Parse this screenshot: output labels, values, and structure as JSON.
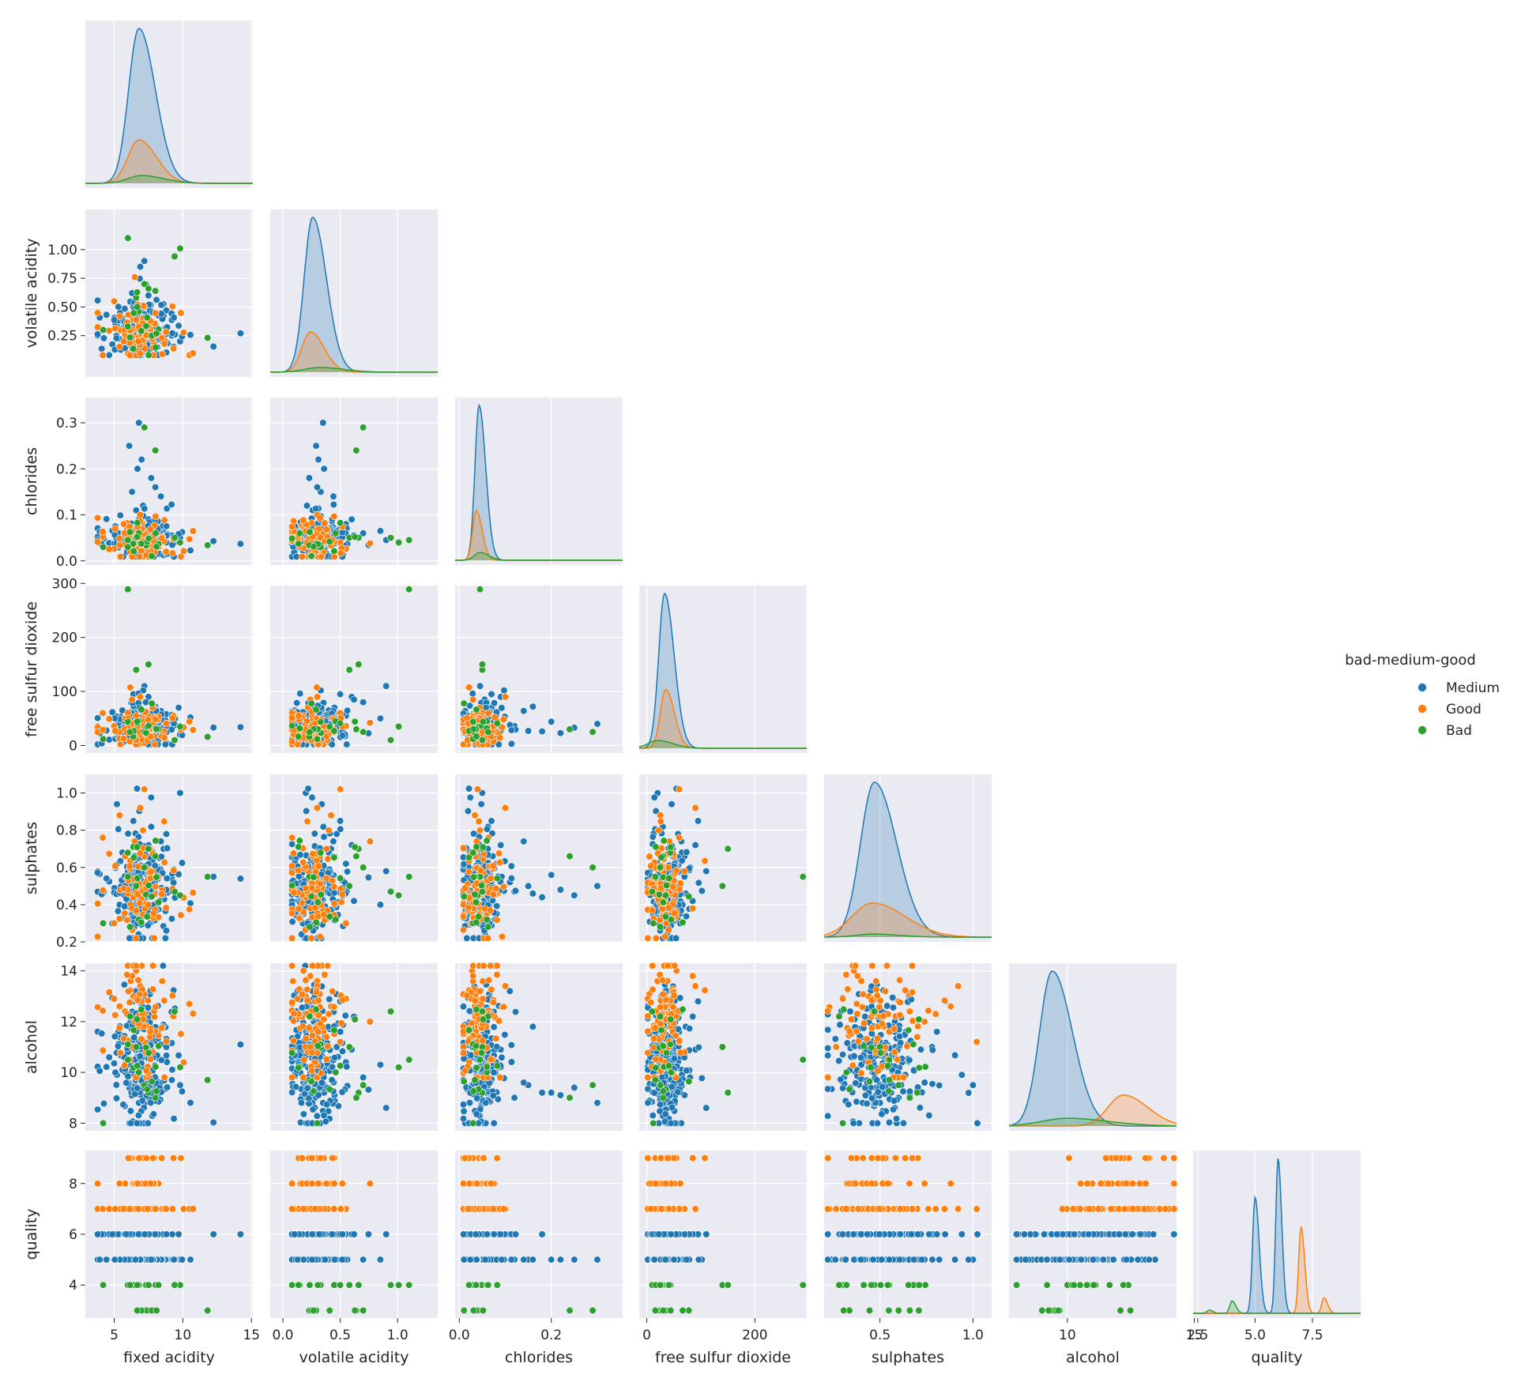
{
  "chart_data": {
    "type": "scatter",
    "subtype": "pairplot-corner",
    "hue_title": "bad-medium-good",
    "variables": [
      "fixed acidity",
      "volatile acidity",
      "chlorides",
      "free sulfur dioxide",
      "sulphates",
      "alcohol",
      "quality"
    ],
    "legend": {
      "title": "bad-medium-good",
      "placement": "right",
      "entries": [
        {
          "name": "Medium",
          "color": "#1f77b4"
        },
        {
          "name": "Good",
          "color": "#ff7f0e"
        },
        {
          "name": "Bad",
          "color": "#2ca02c"
        }
      ]
    },
    "axes": {
      "fixed acidity": {
        "range": [
          2.9,
          15.1
        ],
        "ticks": [
          5,
          10,
          15
        ],
        "tick_labels": [
          "5",
          "10",
          "15"
        ],
        "center": 7.0,
        "spread": 0.9,
        "min": 3.8,
        "max": 14.2
      },
      "volatile acidity": {
        "range": [
          -0.11,
          1.35
        ],
        "ticks": [
          0.25,
          0.5,
          0.75,
          1.0
        ],
        "tick_labels": [
          "0.25",
          "0.50",
          "0.75",
          "1.00"
        ],
        "x_ticks": [
          0.0,
          0.5,
          1.0
        ],
        "x_tick_labels": [
          "0.0",
          "0.5",
          "1.0"
        ],
        "center": 0.28,
        "spread": 0.1,
        "min": 0.08,
        "max": 1.1
      },
      "chlorides": {
        "range": [
          -0.009,
          0.355
        ],
        "ticks": [
          0.0,
          0.1,
          0.2,
          0.3
        ],
        "tick_labels": [
          "0.0",
          "0.1",
          "0.2",
          "0.3"
        ],
        "x_ticks": [
          0.0,
          0.2
        ],
        "x_tick_labels": [
          "0.0",
          "0.2"
        ],
        "center": 0.045,
        "spread": 0.018,
        "min": 0.009,
        "max": 0.346
      },
      "free sulfur dioxide": {
        "range": [
          -14,
          296
        ],
        "ticks": [
          0,
          100,
          200,
          300
        ],
        "tick_labels": [
          "0",
          "100",
          "200",
          "300"
        ],
        "x_ticks": [
          0,
          200
        ],
        "x_tick_labels": [
          "0",
          "200"
        ],
        "center": 35,
        "spread": 16,
        "min": 2,
        "max": 289
      },
      "sulphates": {
        "range": [
          0.2,
          1.1
        ],
        "ticks": [
          0.2,
          0.4,
          0.6,
          0.8,
          1.0
        ],
        "tick_labels": [
          "0.2",
          "0.4",
          "0.6",
          "0.8",
          "1.0"
        ],
        "x_ticks": [
          0.5,
          1.0
        ],
        "x_tick_labels": [
          "0.5",
          "1.0"
        ],
        "center": 0.49,
        "spread": 0.11,
        "min": 0.22,
        "max": 1.08
      },
      "alcohol": {
        "range": [
          7.7,
          14.3
        ],
        "ticks": [
          8,
          10,
          12,
          14
        ],
        "tick_labels": [
          "8",
          "10",
          "12",
          "14"
        ],
        "x_ticks": [
          10,
          15
        ],
        "x_tick_labels": [
          "10",
          "15"
        ],
        "center": 10.4,
        "spread": 1.2,
        "min": 8.0,
        "max": 14.2
      },
      "quality": {
        "range": [
          2.7,
          9.3
        ],
        "ticks": [
          4,
          6,
          8
        ],
        "tick_labels": [
          "4",
          "6",
          "8"
        ],
        "x_ticks": [
          2.5,
          5.0,
          7.5
        ],
        "x_tick_labels": [
          "2.5",
          "5.0",
          "7.5"
        ],
        "x_range": [
          2.3,
          9.6
        ],
        "center": 6,
        "spread": 1,
        "min": 3,
        "max": 9
      }
    },
    "diagonal_kde": {
      "fixed acidity": [
        {
          "name": "Medium",
          "peak_x": 6.8,
          "height": 1.0,
          "width": 0.75
        },
        {
          "name": "Good",
          "peak_x": 6.8,
          "height": 0.28,
          "width": 0.8
        },
        {
          "name": "Bad",
          "peak_x": 7.0,
          "height": 0.05,
          "width": 1.0
        }
      ],
      "volatile acidity": [
        {
          "name": "Medium",
          "peak_x": 0.26,
          "height": 1.0,
          "width": 0.075
        },
        {
          "name": "Good",
          "peak_x": 0.24,
          "height": 0.26,
          "width": 0.075
        },
        {
          "name": "Bad",
          "peak_x": 0.32,
          "height": 0.03,
          "width": 0.13
        }
      ],
      "chlorides": [
        {
          "name": "Medium",
          "peak_x": 0.043,
          "height": 1.0,
          "width": 0.009
        },
        {
          "name": "Good",
          "peak_x": 0.037,
          "height": 0.32,
          "width": 0.008
        },
        {
          "name": "Bad",
          "peak_x": 0.045,
          "height": 0.05,
          "width": 0.012
        }
      ],
      "free sulfur dioxide": [
        {
          "name": "Medium",
          "peak_x": 33,
          "height": 1.0,
          "width": 11
        },
        {
          "name": "Good",
          "peak_x": 35,
          "height": 0.38,
          "width": 10
        },
        {
          "name": "Bad",
          "peak_x": 20,
          "height": 0.05,
          "width": 18
        }
      ],
      "sulphates": [
        {
          "name": "Medium",
          "peak_x": 0.47,
          "height": 1.0,
          "width": 0.075
        },
        {
          "name": "Good",
          "peak_x": 0.46,
          "height": 0.22,
          "width": 0.11
        },
        {
          "name": "Bad",
          "peak_x": 0.46,
          "height": 0.02,
          "width": 0.09
        }
      ],
      "alcohol": [
        {
          "name": "Medium",
          "peak_x": 9.4,
          "height": 1.0,
          "width": 0.5
        },
        {
          "name": "Good",
          "peak_x": 12.2,
          "height": 0.2,
          "width": 0.6
        },
        {
          "name": "Bad",
          "peak_x": 10.0,
          "height": 0.05,
          "width": 1.0
        }
      ],
      "quality": [
        {
          "name": "Medium",
          "peak_x": 5.0,
          "height": 0.75,
          "width": 0.11
        },
        {
          "name": "Medium",
          "peak_x": 6.0,
          "height": 1.0,
          "width": 0.1
        },
        {
          "name": "Good",
          "peak_x": 7.0,
          "height": 0.56,
          "width": 0.1
        },
        {
          "name": "Good",
          "peak_x": 8.0,
          "height": 0.1,
          "width": 0.1
        },
        {
          "name": "Bad",
          "peak_x": 4.0,
          "height": 0.08,
          "width": 0.1
        },
        {
          "name": "Bad",
          "peak_x": 3.0,
          "height": 0.02,
          "width": 0.1
        }
      ]
    },
    "series": [
      {
        "name": "Medium",
        "color": "#1f77b4",
        "points": [
          [
            6.8,
            0.26,
            0.044,
            35,
            0.48,
            9.4,
            6
          ],
          [
            7.2,
            0.3,
            0.05,
            40,
            0.52,
            9.8,
            5
          ],
          [
            6.4,
            0.22,
            0.036,
            28,
            0.44,
            10.2,
            6
          ],
          [
            7.6,
            0.34,
            0.058,
            45,
            0.55,
            9.2,
            5
          ],
          [
            6.0,
            0.2,
            0.04,
            22,
            0.42,
            10.8,
            6
          ],
          [
            8.2,
            0.28,
            0.046,
            30,
            0.6,
            9.0,
            5
          ],
          [
            6.6,
            0.38,
            0.052,
            52,
            0.5,
            11.2,
            6
          ],
          [
            7.0,
            0.18,
            0.032,
            18,
            0.38,
            9.6,
            5
          ],
          [
            5.8,
            0.24,
            0.042,
            38,
            0.46,
            10.0,
            6
          ],
          [
            7.8,
            0.32,
            0.048,
            60,
            0.64,
            11.6,
            6
          ],
          [
            6.2,
            0.27,
            0.038,
            25,
            0.58,
            12.0,
            6
          ],
          [
            8.6,
            0.42,
            0.062,
            48,
            0.7,
            9.3,
            5
          ],
          [
            7.4,
            0.15,
            0.03,
            15,
            0.36,
            10.6,
            5
          ],
          [
            6.9,
            0.45,
            0.07,
            70,
            0.66,
            9.1,
            5
          ],
          [
            5.4,
            0.3,
            0.034,
            32,
            0.4,
            11.4,
            6
          ],
          [
            9.2,
            0.25,
            0.055,
            42,
            0.54,
            9.7,
            5
          ],
          [
            6.5,
            0.55,
            0.08,
            55,
            0.62,
            10.4,
            6
          ],
          [
            7.1,
            0.21,
            0.12,
            36,
            0.47,
            9.0,
            5
          ],
          [
            6.3,
            0.33,
            0.15,
            27,
            0.5,
            9.5,
            5
          ],
          [
            7.5,
            0.6,
            0.09,
            90,
            0.72,
            10.9,
            6
          ],
          [
            6.7,
            0.36,
            0.2,
            44,
            0.56,
            9.2,
            5
          ],
          [
            7.9,
            0.12,
            0.028,
            12,
            0.34,
            12.4,
            6
          ],
          [
            5.6,
            0.4,
            0.046,
            65,
            0.68,
            10.1,
            6
          ],
          [
            8.8,
            0.47,
            0.04,
            58,
            0.78,
            11.0,
            5
          ],
          [
            6.1,
            0.29,
            0.25,
            33,
            0.45,
            9.4,
            5
          ],
          [
            7.3,
            0.7,
            0.06,
            80,
            0.6,
            9.8,
            5
          ],
          [
            6.8,
            0.35,
            0.3,
            40,
            0.5,
            8.8,
            5
          ],
          [
            7.7,
            0.23,
            0.18,
            26,
            0.44,
            9.2,
            6
          ],
          [
            6.4,
            0.5,
            0.07,
            95,
            0.85,
            12.8,
            6
          ],
          [
            14.2,
            0.27,
            0.037,
            34,
            0.54,
            11.1,
            6
          ],
          [
            9.8,
            0.2,
            0.05,
            20,
            1.0,
            9.5,
            5
          ],
          [
            6.9,
            0.85,
            0.065,
            50,
            0.4,
            10.3,
            5
          ],
          [
            7.2,
            0.9,
            0.045,
            110,
            0.58,
            8.6,
            6
          ],
          [
            8.0,
            0.3,
            0.16,
            72,
            0.46,
            11.8,
            5
          ],
          [
            6.6,
            0.26,
            0.11,
            38,
            0.52,
            13.2,
            6
          ],
          [
            5.2,
            0.34,
            0.048,
            46,
            0.94,
            9.9,
            6
          ],
          [
            7.6,
            0.19,
            0.042,
            30,
            0.3,
            10.7,
            5
          ],
          [
            6.3,
            0.62,
            0.055,
            85,
            0.42,
            12.2,
            6
          ],
          [
            8.4,
            0.44,
            0.14,
            64,
            0.74,
            9.6,
            5
          ],
          [
            7.0,
            0.31,
            0.22,
            23,
            0.48,
            9.1,
            5
          ]
        ]
      },
      {
        "name": "Good",
        "color": "#ff7f0e",
        "points": [
          [
            6.8,
            0.24,
            0.035,
            35,
            0.5,
            12.2,
            7
          ],
          [
            7.0,
            0.28,
            0.038,
            40,
            0.6,
            12.8,
            7
          ],
          [
            6.4,
            0.2,
            0.032,
            30,
            0.44,
            13.0,
            8
          ],
          [
            7.4,
            0.32,
            0.04,
            45,
            0.52,
            11.8,
            7
          ],
          [
            6.2,
            0.3,
            0.03,
            38,
            0.4,
            13.6,
            7
          ],
          [
            5.8,
            0.26,
            0.036,
            50,
            0.66,
            12.4,
            8
          ],
          [
            7.6,
            0.38,
            0.042,
            28,
            0.7,
            11.4,
            7
          ],
          [
            6.6,
            0.18,
            0.028,
            55,
            0.36,
            14.0,
            7
          ],
          [
            5.4,
            0.42,
            0.034,
            25,
            0.88,
            12.6,
            8
          ],
          [
            7.2,
            0.5,
            0.04,
            60,
            1.02,
            11.2,
            7
          ],
          [
            6.0,
            0.34,
            0.03,
            32,
            0.46,
            14.2,
            9
          ],
          [
            7.8,
            0.22,
            0.044,
            70,
            0.58,
            10.8,
            7
          ],
          [
            6.5,
            0.76,
            0.038,
            42,
            0.74,
            12.0,
            8
          ],
          [
            6.9,
            0.3,
            0.1,
            90,
            0.92,
            13.4,
            7
          ],
          [
            5.0,
            0.55,
            0.026,
            36,
            0.3,
            12.9,
            7
          ],
          [
            8.2,
            0.26,
            0.036,
            48,
            0.55,
            11.6,
            8
          ],
          [
            6.3,
            0.24,
            0.03,
            85,
            0.38,
            13.8,
            9
          ],
          [
            7.1,
            0.4,
            0.045,
            22,
            0.8,
            12.3,
            7
          ]
        ]
      },
      {
        "name": "Bad",
        "color": "#2ca02c",
        "points": [
          [
            6.0,
            1.1,
            0.045,
            289,
            0.55,
            10.5,
            4
          ],
          [
            9.8,
            1.01,
            0.04,
            35,
            0.45,
            10.2,
            4
          ],
          [
            7.2,
            0.7,
            0.29,
            25,
            0.6,
            9.5,
            3
          ],
          [
            6.6,
            0.58,
            0.05,
            140,
            0.5,
            11.0,
            4
          ],
          [
            11.8,
            0.23,
            0.034,
            16,
            0.55,
            9.7,
            3
          ],
          [
            4.2,
            0.3,
            0.03,
            12,
            0.3,
            8.0,
            4
          ],
          [
            9.4,
            0.94,
            0.05,
            10,
            0.47,
            12.4,
            4
          ],
          [
            7.5,
            0.66,
            0.05,
            150,
            0.7,
            9.2,
            4
          ],
          [
            8.0,
            0.64,
            0.24,
            30,
            0.66,
            9.0,
            3
          ],
          [
            6.8,
            0.46,
            0.06,
            45,
            0.32,
            10.0,
            4
          ]
        ]
      }
    ]
  }
}
